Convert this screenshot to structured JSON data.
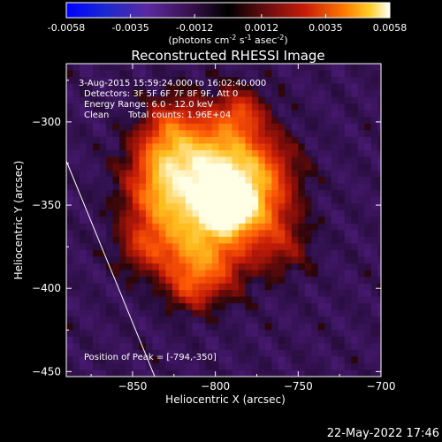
{
  "colorbar": {
    "ticks": [
      "-0.0058",
      "-0.0035",
      "-0.0012",
      "0.0012",
      "0.0035",
      "0.0058"
    ],
    "unit_main": "(photons cm",
    "unit_sup1": "-2",
    "unit_mid": " s",
    "unit_sup2": "-1",
    "unit_mid2": " asec",
    "unit_sup3": "-2",
    "unit_end": ")",
    "range": [
      -0.0058,
      0.0058
    ]
  },
  "chart_data": {
    "type": "heatmap",
    "title": "Reconstructed RHESSI Image",
    "xlabel": "Heliocentric X (arcsec)",
    "ylabel": "Heliocentric Y (arcsec)",
    "xlim": [
      -890,
      -700
    ],
    "ylim": [
      -453,
      -265
    ],
    "xticks": [
      -850,
      -800,
      -750,
      -700
    ],
    "yticks": [
      -300,
      -350,
      -400,
      -450
    ],
    "xtick_labels": [
      "−850",
      "−800",
      "−750",
      "−700"
    ],
    "ytick_labels": [
      "−300",
      "−350",
      "−400",
      "−450"
    ],
    "peak": {
      "x": -794,
      "y": -350
    },
    "annotations": [
      "3-Aug-2015 15:59:24.000 to 16:02:40.000",
      "Detectors: 3F 5F 6F 7F 8F 9F, Att 0",
      "Energy Range: 6.0 - 12.0 keV",
      "Clean",
      "Total counts: 1.96E+04",
      "Position of Peak = [-794,-350]"
    ],
    "colormap": "red-temperature-with-blue-negatives"
  },
  "timestamp": "22-May-2022 17:46"
}
